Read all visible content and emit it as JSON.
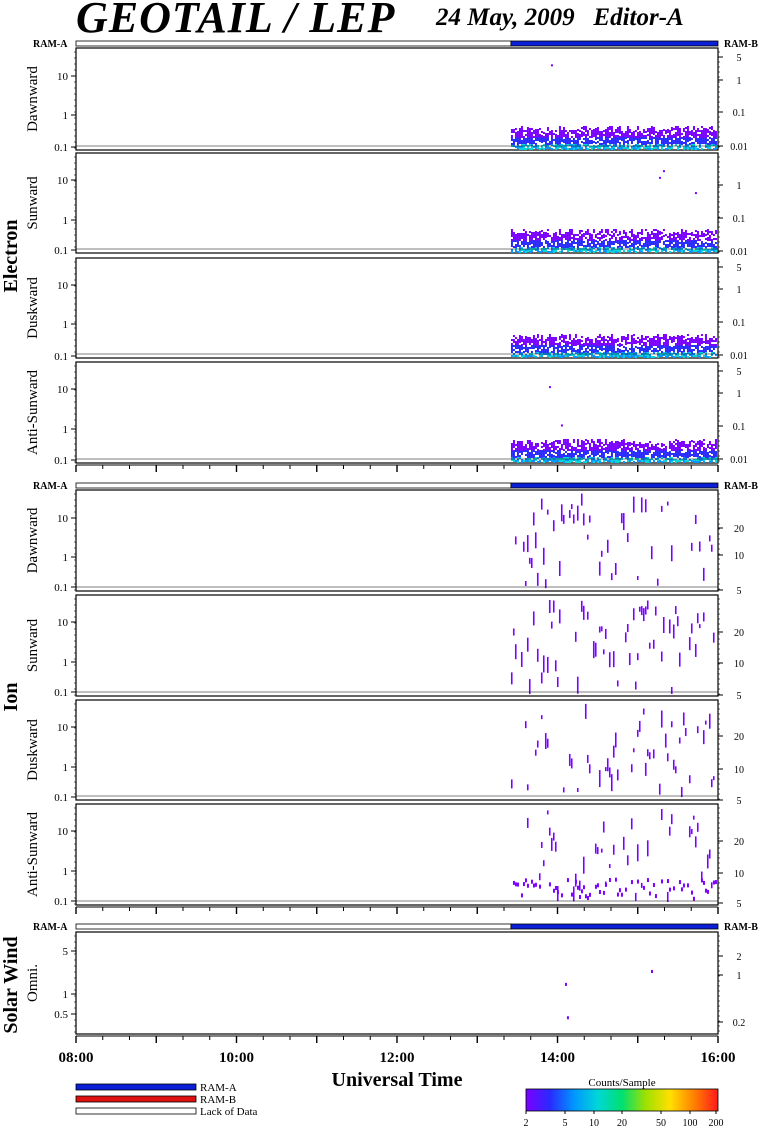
{
  "title": "GEOTAIL / LEP",
  "date": "24 May, 2009",
  "editor": "Editor-A",
  "group_labels": [
    "Electron",
    "Ion",
    "Solar Wind"
  ],
  "ram_labels": {
    "left": "RAM-A",
    "right": "RAM-B"
  },
  "x_axis": {
    "label": "Universal Time",
    "ticks": [
      "08:00",
      "10:00",
      "12:00",
      "14:00",
      "16:00"
    ],
    "range_hours": [
      8,
      16
    ]
  },
  "legend": {
    "items": [
      {
        "label": "RAM-A",
        "color": "#0a1fd6"
      },
      {
        "label": "RAM-B",
        "color": "#e01010"
      },
      {
        "label": "Lack of Data",
        "color": "#ffffff"
      }
    ]
  },
  "colorbar": {
    "title": "Counts/Sample",
    "ticks": [
      "2",
      "5",
      "10",
      "20",
      "50",
      "100",
      "200"
    ],
    "colors": [
      "#7a00ff",
      "#2a2aff",
      "#0096ff",
      "#00d7d7",
      "#00e070",
      "#a0e000",
      "#ffe000",
      "#ff8000",
      "#ff1a1a"
    ]
  },
  "chart_data": {
    "type": "heatmap",
    "data_start_hour": 13.42,
    "ram_status": [
      {
        "start": 8.0,
        "end": 13.42,
        "state": "Lack of Data"
      },
      {
        "start": 13.42,
        "end": 16.0,
        "state": "RAM-A"
      }
    ],
    "panels": [
      {
        "group": "Electron",
        "label": "Dawnward",
        "left_ticks": [
          "10",
          "1",
          "0.1"
        ],
        "right_ticks": [
          "5",
          "1",
          "0.1",
          "0.01"
        ]
      },
      {
        "group": "Electron",
        "label": "Sunward",
        "left_ticks": [
          "10",
          "1",
          "0.1"
        ],
        "right_ticks": [
          "1",
          "0.1",
          "0.01"
        ]
      },
      {
        "group": "Electron",
        "label": "Duskward",
        "left_ticks": [
          "10",
          "1",
          "0.1"
        ],
        "right_ticks": [
          "5",
          "1",
          "0.1",
          "0.01"
        ]
      },
      {
        "group": "Electron",
        "label": "Anti-Sunward",
        "left_ticks": [
          "10",
          "1",
          "0.1"
        ],
        "right_ticks": [
          "5",
          "1",
          "0.1",
          "0.01"
        ]
      },
      {
        "group": "Ion",
        "label": "Dawnward",
        "left_ticks": [
          "10",
          "1",
          "0.1"
        ],
        "right_ticks": [
          "20",
          "10",
          "5"
        ]
      },
      {
        "group": "Ion",
        "label": "Sunward",
        "left_ticks": [
          "10",
          "1",
          "0.1"
        ],
        "right_ticks": [
          "20",
          "10",
          "5"
        ]
      },
      {
        "group": "Ion",
        "label": "Duskward",
        "left_ticks": [
          "10",
          "1",
          "0.1"
        ],
        "right_ticks": [
          "20",
          "10",
          "5"
        ]
      },
      {
        "group": "Ion",
        "label": "Anti-Sunward",
        "left_ticks": [
          "10",
          "1",
          "0.1"
        ],
        "right_ticks": [
          "20",
          "10",
          "5"
        ]
      },
      {
        "group": "Solar Wind",
        "label": "Omni.",
        "left_ticks": [
          "5",
          "1",
          "0.5"
        ],
        "right_ticks": [
          "2",
          "1",
          "0.2"
        ]
      }
    ]
  }
}
